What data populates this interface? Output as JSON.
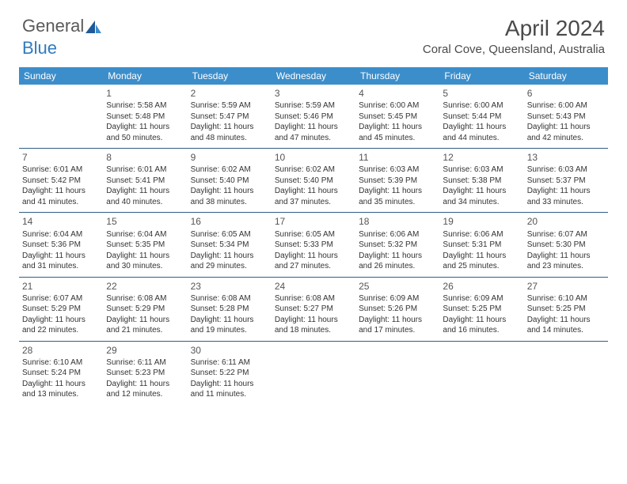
{
  "brand": {
    "part1": "General",
    "part2": "Blue"
  },
  "title": "April 2024",
  "location": "Coral Cove, Queensland, Australia",
  "colors": {
    "header_bg": "#3c8ecb",
    "header_text": "#ffffff",
    "rule": "#2f5f87",
    "text": "#333333",
    "brand_gray": "#5a5a5a",
    "brand_blue": "#2f7bbf"
  },
  "day_names": [
    "Sunday",
    "Monday",
    "Tuesday",
    "Wednesday",
    "Thursday",
    "Friday",
    "Saturday"
  ],
  "first_weekday": 1,
  "days": [
    {
      "n": 1,
      "sunrise": "5:58 AM",
      "sunset": "5:48 PM",
      "daylight": "11 hours and 50 minutes."
    },
    {
      "n": 2,
      "sunrise": "5:59 AM",
      "sunset": "5:47 PM",
      "daylight": "11 hours and 48 minutes."
    },
    {
      "n": 3,
      "sunrise": "5:59 AM",
      "sunset": "5:46 PM",
      "daylight": "11 hours and 47 minutes."
    },
    {
      "n": 4,
      "sunrise": "6:00 AM",
      "sunset": "5:45 PM",
      "daylight": "11 hours and 45 minutes."
    },
    {
      "n": 5,
      "sunrise": "6:00 AM",
      "sunset": "5:44 PM",
      "daylight": "11 hours and 44 minutes."
    },
    {
      "n": 6,
      "sunrise": "6:00 AM",
      "sunset": "5:43 PM",
      "daylight": "11 hours and 42 minutes."
    },
    {
      "n": 7,
      "sunrise": "6:01 AM",
      "sunset": "5:42 PM",
      "daylight": "11 hours and 41 minutes."
    },
    {
      "n": 8,
      "sunrise": "6:01 AM",
      "sunset": "5:41 PM",
      "daylight": "11 hours and 40 minutes."
    },
    {
      "n": 9,
      "sunrise": "6:02 AM",
      "sunset": "5:40 PM",
      "daylight": "11 hours and 38 minutes."
    },
    {
      "n": 10,
      "sunrise": "6:02 AM",
      "sunset": "5:40 PM",
      "daylight": "11 hours and 37 minutes."
    },
    {
      "n": 11,
      "sunrise": "6:03 AM",
      "sunset": "5:39 PM",
      "daylight": "11 hours and 35 minutes."
    },
    {
      "n": 12,
      "sunrise": "6:03 AM",
      "sunset": "5:38 PM",
      "daylight": "11 hours and 34 minutes."
    },
    {
      "n": 13,
      "sunrise": "6:03 AM",
      "sunset": "5:37 PM",
      "daylight": "11 hours and 33 minutes."
    },
    {
      "n": 14,
      "sunrise": "6:04 AM",
      "sunset": "5:36 PM",
      "daylight": "11 hours and 31 minutes."
    },
    {
      "n": 15,
      "sunrise": "6:04 AM",
      "sunset": "5:35 PM",
      "daylight": "11 hours and 30 minutes."
    },
    {
      "n": 16,
      "sunrise": "6:05 AM",
      "sunset": "5:34 PM",
      "daylight": "11 hours and 29 minutes."
    },
    {
      "n": 17,
      "sunrise": "6:05 AM",
      "sunset": "5:33 PM",
      "daylight": "11 hours and 27 minutes."
    },
    {
      "n": 18,
      "sunrise": "6:06 AM",
      "sunset": "5:32 PM",
      "daylight": "11 hours and 26 minutes."
    },
    {
      "n": 19,
      "sunrise": "6:06 AM",
      "sunset": "5:31 PM",
      "daylight": "11 hours and 25 minutes."
    },
    {
      "n": 20,
      "sunrise": "6:07 AM",
      "sunset": "5:30 PM",
      "daylight": "11 hours and 23 minutes."
    },
    {
      "n": 21,
      "sunrise": "6:07 AM",
      "sunset": "5:29 PM",
      "daylight": "11 hours and 22 minutes."
    },
    {
      "n": 22,
      "sunrise": "6:08 AM",
      "sunset": "5:29 PM",
      "daylight": "11 hours and 21 minutes."
    },
    {
      "n": 23,
      "sunrise": "6:08 AM",
      "sunset": "5:28 PM",
      "daylight": "11 hours and 19 minutes."
    },
    {
      "n": 24,
      "sunrise": "6:08 AM",
      "sunset": "5:27 PM",
      "daylight": "11 hours and 18 minutes."
    },
    {
      "n": 25,
      "sunrise": "6:09 AM",
      "sunset": "5:26 PM",
      "daylight": "11 hours and 17 minutes."
    },
    {
      "n": 26,
      "sunrise": "6:09 AM",
      "sunset": "5:25 PM",
      "daylight": "11 hours and 16 minutes."
    },
    {
      "n": 27,
      "sunrise": "6:10 AM",
      "sunset": "5:25 PM",
      "daylight": "11 hours and 14 minutes."
    },
    {
      "n": 28,
      "sunrise": "6:10 AM",
      "sunset": "5:24 PM",
      "daylight": "11 hours and 13 minutes."
    },
    {
      "n": 29,
      "sunrise": "6:11 AM",
      "sunset": "5:23 PM",
      "daylight": "11 hours and 12 minutes."
    },
    {
      "n": 30,
      "sunrise": "6:11 AM",
      "sunset": "5:22 PM",
      "daylight": "11 hours and 11 minutes."
    }
  ],
  "labels": {
    "sunrise": "Sunrise:",
    "sunset": "Sunset:",
    "daylight": "Daylight:"
  }
}
